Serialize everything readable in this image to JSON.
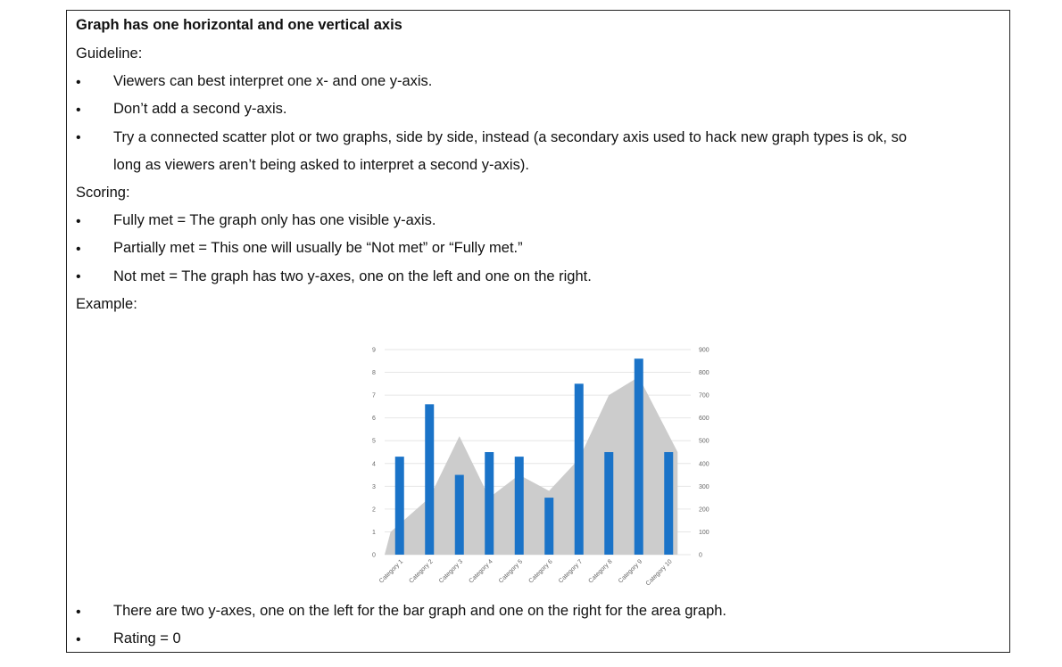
{
  "doc": {
    "heading": "Graph has one horizontal and one vertical axis",
    "guideline_label": "Guideline:",
    "guideline_items": [
      "Viewers can best interpret one x- and one y-axis.",
      "Don’t add a second y-axis.",
      "Try a connected scatter plot or two graphs, side by side, instead (a secondary axis used to hack new graph types is ok, so",
      "long as viewers aren’t being asked to interpret a second y-axis)."
    ],
    "scoring_label": "Scoring:",
    "scoring_items": [
      "Fully met = The graph only has one visible y-axis.",
      "Partially met = This one will usually be “Not met” or “Fully met.”",
      "Not met = The graph has two y-axes, one on the left and one on the right."
    ],
    "example_label": "Example:",
    "after_items": [
      "There are two y-axes, one on the left for the bar graph and one on the right for the area graph.",
      "Rating = 0"
    ],
    "bullet_glyph": "•"
  },
  "chart_data": {
    "type": "bar",
    "categories": [
      "Category 1",
      "Category 2",
      "Category 3",
      "Category 4",
      "Category 5",
      "Category 6",
      "Category 7",
      "Category 8",
      "Category 9",
      "Category 10"
    ],
    "series": [
      {
        "type": "bar",
        "axis": "left",
        "values": [
          4.3,
          6.6,
          3.5,
          4.5,
          4.3,
          2.5,
          7.5,
          4.5,
          8.6,
          4.5
        ],
        "color": "#1a73c8"
      },
      {
        "type": "area",
        "axis": "right",
        "values": [
          100,
          250,
          520,
          250,
          350,
          280,
          420,
          700,
          780,
          450
        ],
        "color": "#cccccc"
      }
    ],
    "y_left": {
      "ticks": [
        "0",
        "1",
        "2",
        "3",
        "4",
        "5",
        "6",
        "7",
        "8",
        "9"
      ],
      "ylim": [
        0,
        9
      ]
    },
    "y_right": {
      "ticks": [
        "0",
        "100",
        "200",
        "300",
        "400",
        "500",
        "600",
        "700",
        "800",
        "900"
      ],
      "ylim": [
        0,
        900
      ]
    },
    "grid": true
  }
}
